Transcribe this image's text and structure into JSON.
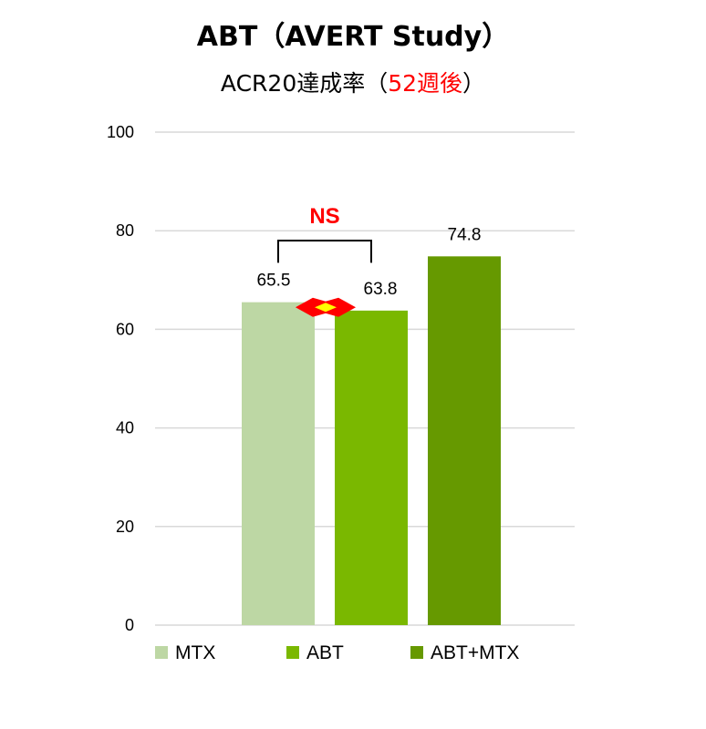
{
  "chart_data": {
    "type": "bar",
    "title": "ABT（AVERT Study）",
    "subtitle_prefix": "ACR20達成率（",
    "subtitle_highlight": "52週後",
    "subtitle_suffix": "）",
    "categories": [
      "MTX",
      "ABT",
      "ABT+MTX"
    ],
    "values": [
      65.5,
      63.8,
      74.8
    ],
    "value_labels": [
      "65.5",
      "63.8",
      "74.8"
    ],
    "colors": [
      "#bdd7a4",
      "#7ab800",
      "#669900"
    ],
    "ylim": [
      0,
      100
    ],
    "yticks": [
      "0",
      "20",
      "40",
      "60",
      "80",
      "100"
    ],
    "ytick_values": [
      0,
      20,
      40,
      60,
      80,
      100
    ],
    "grid": true,
    "legend_position": "bottom",
    "annotation": {
      "text": "NS",
      "color": "#ff0000",
      "between": [
        "MTX",
        "ABT"
      ]
    },
    "highlight_color": "#ff0000",
    "marker_fill": "#ffff00"
  }
}
